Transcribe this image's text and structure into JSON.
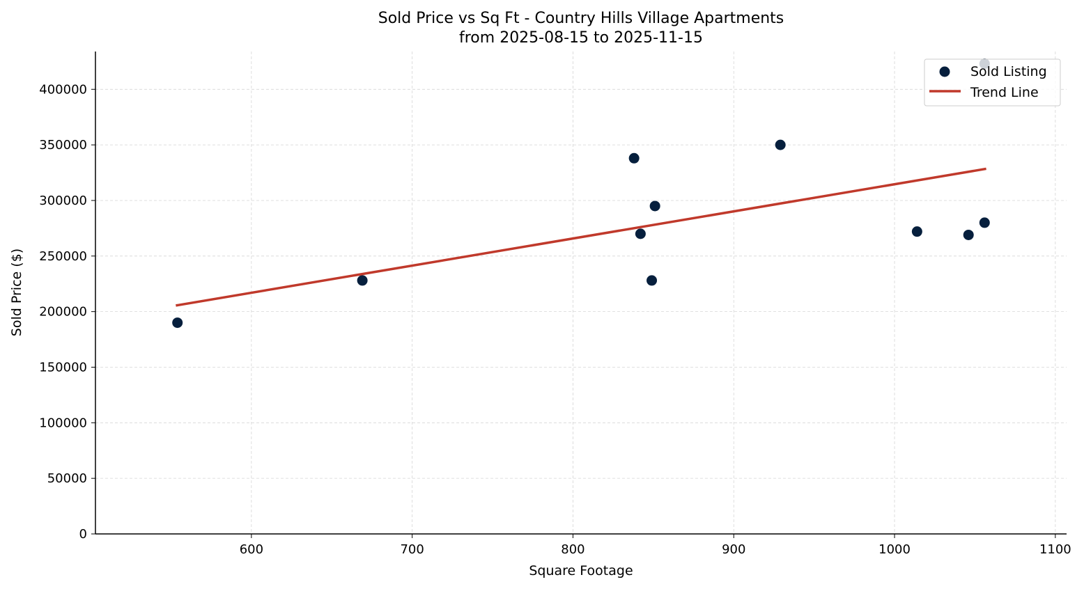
{
  "chart_data": {
    "type": "scatter",
    "title": "Sold Price vs Sq Ft - Country Hills Village Apartments",
    "subtitle": "from 2025-08-15 to 2025-11-15",
    "xlabel": "Square Footage",
    "ylabel": "Sold Price ($)",
    "xlim": [
      503,
      1107
    ],
    "ylim": [
      0,
      434000
    ],
    "xticks": [
      600,
      700,
      800,
      900,
      1000,
      1100
    ],
    "yticks": [
      0,
      50000,
      100000,
      150000,
      200000,
      250000,
      300000,
      350000,
      400000
    ],
    "grid": true,
    "legend_position": "top-right",
    "series": [
      {
        "name": "Sold Listing",
        "type": "scatter",
        "color": "#061f3d",
        "x": [
          554,
          669,
          838,
          842,
          849,
          851,
          929,
          1014,
          1046,
          1056,
          1056
        ],
        "y": [
          190000,
          228000,
          338000,
          270000,
          228000,
          295000,
          350000,
          272000,
          269000,
          280000,
          423000
        ]
      },
      {
        "name": "Trend Line",
        "type": "line",
        "color": "#c0392b",
        "x": [
          553,
          1057
        ],
        "y": [
          205500,
          328500
        ]
      }
    ]
  }
}
